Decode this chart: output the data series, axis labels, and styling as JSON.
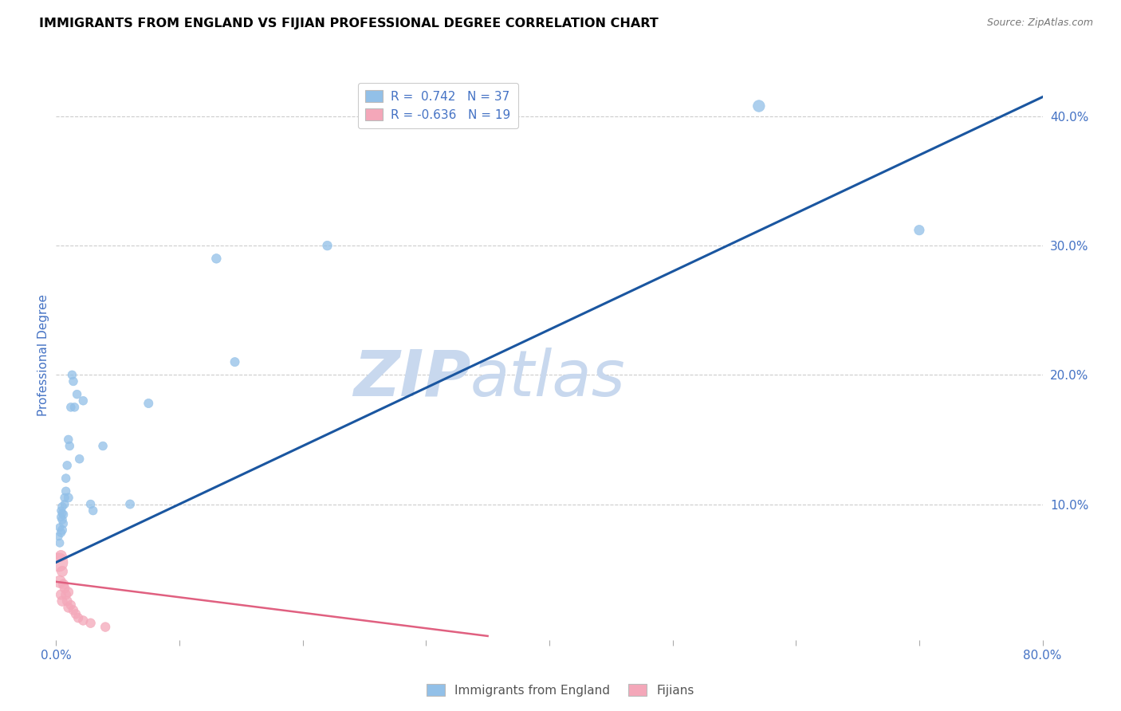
{
  "title": "IMMIGRANTS FROM ENGLAND VS FIJIAN PROFESSIONAL DEGREE CORRELATION CHART",
  "source": "Source: ZipAtlas.com",
  "ylabel": "Professional Degree",
  "xlim": [
    0.0,
    0.8
  ],
  "ylim": [
    -0.005,
    0.435
  ],
  "x_ticks": [
    0.0,
    0.1,
    0.2,
    0.3,
    0.4,
    0.5,
    0.6,
    0.7,
    0.8
  ],
  "x_tick_labels": [
    "0.0%",
    "",
    "",
    "",
    "",
    "",
    "",
    "",
    "80.0%"
  ],
  "y_ticks_right": [
    0.1,
    0.2,
    0.3,
    0.4
  ],
  "y_tick_labels_right": [
    "10.0%",
    "20.0%",
    "30.0%",
    "40.0%"
  ],
  "blue_color": "#92c0e8",
  "pink_color": "#f4a7b9",
  "blue_line_color": "#1a56a0",
  "pink_line_color": "#e06080",
  "legend_r_blue": "0.742",
  "legend_n_blue": "37",
  "legend_r_pink": "-0.636",
  "legend_n_pink": "19",
  "legend_label_blue": "Immigrants from England",
  "legend_label_pink": "Fijians",
  "watermark_zip": "ZIP",
  "watermark_atlas": "atlas",
  "blue_scatter_x": [
    0.002,
    0.003,
    0.003,
    0.004,
    0.004,
    0.004,
    0.005,
    0.005,
    0.005,
    0.005,
    0.006,
    0.006,
    0.007,
    0.007,
    0.008,
    0.008,
    0.009,
    0.01,
    0.01,
    0.011,
    0.012,
    0.013,
    0.014,
    0.015,
    0.017,
    0.019,
    0.022,
    0.028,
    0.03,
    0.038,
    0.06,
    0.075,
    0.13,
    0.145,
    0.22,
    0.57,
    0.7
  ],
  "blue_scatter_y": [
    0.075,
    0.082,
    0.07,
    0.078,
    0.09,
    0.095,
    0.08,
    0.088,
    0.093,
    0.098,
    0.085,
    0.092,
    0.1,
    0.105,
    0.11,
    0.12,
    0.13,
    0.15,
    0.105,
    0.145,
    0.175,
    0.2,
    0.195,
    0.175,
    0.185,
    0.135,
    0.18,
    0.1,
    0.095,
    0.145,
    0.1,
    0.178,
    0.29,
    0.21,
    0.3,
    0.408,
    0.312
  ],
  "blue_scatter_sizes": [
    50,
    55,
    55,
    60,
    55,
    50,
    65,
    60,
    55,
    60,
    55,
    60,
    55,
    60,
    60,
    60,
    60,
    60,
    65,
    60,
    60,
    60,
    60,
    60,
    60,
    60,
    60,
    60,
    60,
    60,
    65,
    65,
    70,
    65,
    70,
    110,
    80
  ],
  "pink_scatter_x": [
    0.002,
    0.003,
    0.004,
    0.004,
    0.005,
    0.005,
    0.006,
    0.007,
    0.008,
    0.009,
    0.01,
    0.01,
    0.012,
    0.014,
    0.016,
    0.018,
    0.022,
    0.028,
    0.04
  ],
  "pink_scatter_y": [
    0.055,
    0.04,
    0.06,
    0.03,
    0.048,
    0.025,
    0.038,
    0.035,
    0.03,
    0.025,
    0.032,
    0.02,
    0.022,
    0.018,
    0.015,
    0.012,
    0.01,
    0.008,
    0.005
  ],
  "pink_scatter_sizes": [
    280,
    120,
    100,
    80,
    90,
    80,
    80,
    75,
    75,
    75,
    75,
    75,
    70,
    70,
    70,
    70,
    70,
    70,
    70
  ],
  "blue_line_x": [
    0.0,
    0.8
  ],
  "blue_line_y": [
    0.055,
    0.415
  ],
  "pink_line_x": [
    0.0,
    0.35
  ],
  "pink_line_y": [
    0.04,
    -0.002
  ],
  "background_color": "#ffffff",
  "grid_color": "#cccccc",
  "title_color": "#000000",
  "axis_label_color": "#4472c4",
  "tick_label_color": "#4472c4"
}
